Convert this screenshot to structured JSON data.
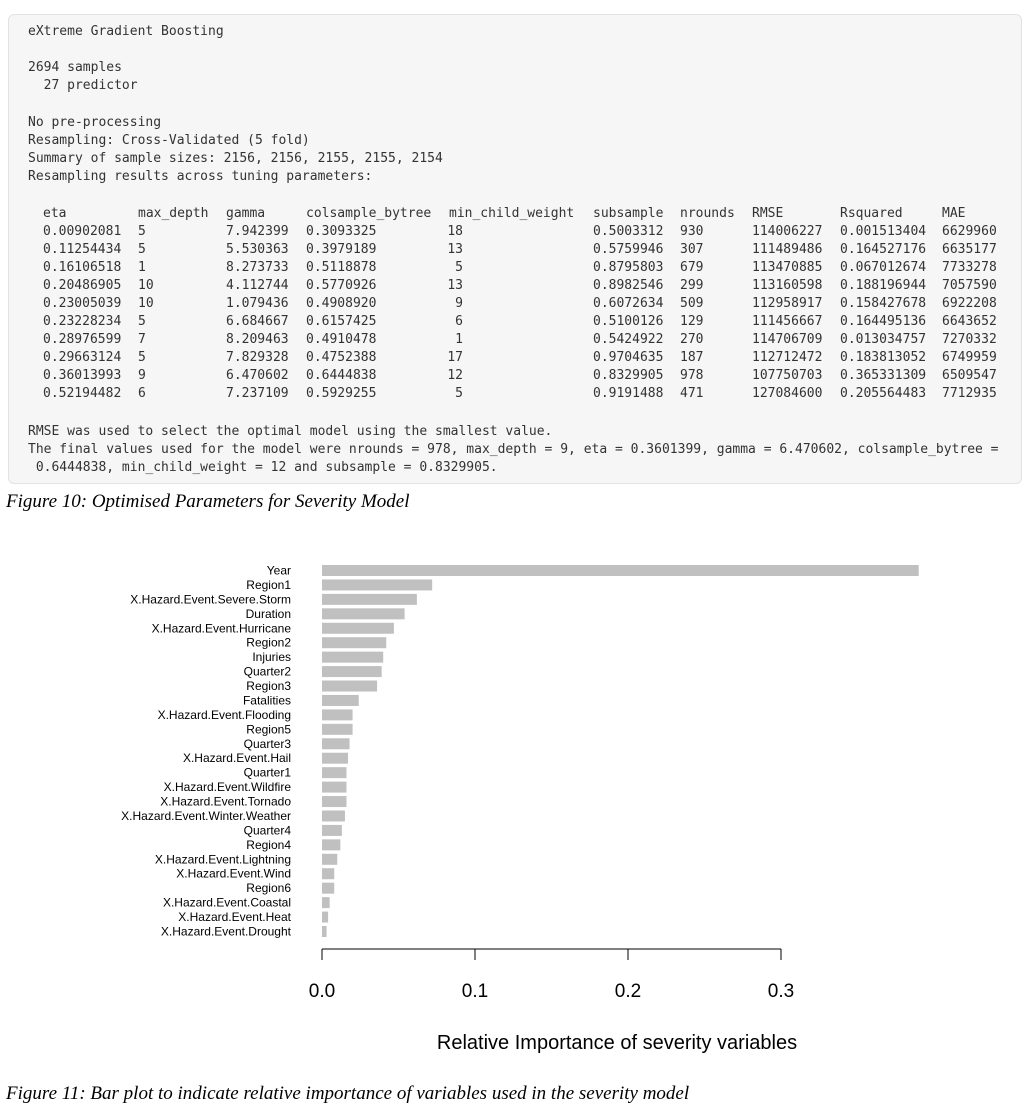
{
  "console": {
    "model_name": "eXtreme Gradient Boosting",
    "samples": "2694 samples",
    "predictors": "  27 predictor",
    "preprocessing": "No pre-processing",
    "resampling": "Resampling: Cross-Validated (5 fold)",
    "sample_sizes": "Summary of sample sizes: 2156, 2156, 2155, 2155, 2154",
    "results_header": "Resampling results across tuning parameters:",
    "columns": [
      "eta",
      "max_depth",
      "gamma",
      "colsample_bytree",
      "min_child_weight",
      "subsample",
      "nrounds",
      "RMSE",
      "Rsquared",
      "MAE"
    ],
    "rows": [
      [
        "0.00902081",
        "5",
        "7.942399",
        "0.3093325",
        "18",
        "0.5003312",
        "930",
        "114006227",
        "0.001513404",
        "6629960"
      ],
      [
        "0.11254434",
        "5",
        "5.530363",
        "0.3979189",
        "13",
        "0.5759946",
        "307",
        "111489486",
        "0.164527176",
        "6635177"
      ],
      [
        "0.16106518",
        "1",
        "8.273733",
        "0.5118878",
        "5",
        "0.8795803",
        "679",
        "113470885",
        "0.067012674",
        "7733278"
      ],
      [
        "0.20486905",
        "10",
        "4.112744",
        "0.5770926",
        "13",
        "0.8982546",
        "299",
        "113160598",
        "0.188196944",
        "7057590"
      ],
      [
        "0.23005039",
        "10",
        "1.079436",
        "0.4908920",
        "9",
        "0.6072634",
        "509",
        "112958917",
        "0.158427678",
        "6922208"
      ],
      [
        "0.23228234",
        "5",
        "6.684667",
        "0.6157425",
        "6",
        "0.5100126",
        "129",
        "111456667",
        "0.164495136",
        "6643652"
      ],
      [
        "0.28976599",
        "7",
        "8.209463",
        "0.4910478",
        "1",
        "0.5424922",
        "270",
        "114706709",
        "0.013034757",
        "7270332"
      ],
      [
        "0.29663124",
        "5",
        "7.829328",
        "0.4752388",
        "17",
        "0.9704635",
        "187",
        "112712472",
        "0.183813052",
        "6749959"
      ],
      [
        "0.36013993",
        "9",
        "6.470602",
        "0.6444838",
        "12",
        "0.8329905",
        "978",
        "107750703",
        "0.365331309",
        "6509547"
      ],
      [
        "0.52194482",
        "6",
        "7.237109",
        "0.5929255",
        "5",
        "0.9191488",
        "471",
        "127084600",
        "0.205564483",
        "7712935"
      ]
    ],
    "rmse_note": "RMSE was used to select the optimal model using the smallest value.",
    "final_values_line1": "The final values used for the model were nrounds = 978, max_depth = 9, eta = 0.3601399, gamma = 6.470602, colsample_bytree =",
    "final_values_line2": " 0.6444838, min_child_weight = 12 and subsample = 0.8329905."
  },
  "caption_fig10": "Figure 10: Optimised Parameters for Severity Model",
  "caption_fig11": "Figure 11: Bar plot to indicate relative importance of variables used in the severity model",
  "chart_data": {
    "type": "bar",
    "orientation": "horizontal",
    "categories": [
      "Year",
      "Region1",
      "X.Hazard.Event.Severe.Storm",
      "Duration",
      "X.Hazard.Event.Hurricane",
      "Region2",
      "Injuries",
      "Quarter2",
      "Region3",
      "Fatalities",
      "X.Hazard.Event.Flooding",
      "Region5",
      "Quarter3",
      "X.Hazard.Event.Hail",
      "Quarter1",
      "X.Hazard.Event.Wildfire",
      "X.Hazard.Event.Tornado",
      "X.Hazard.Event.Winter.Weather",
      "Quarter4",
      "Region4",
      "X.Hazard.Event.Lightning",
      "X.Hazard.Event.Wind",
      "Region6",
      "X.Hazard.Event.Coastal",
      "X.Hazard.Event.Heat",
      "X.Hazard.Event.Drought"
    ],
    "values": [
      0.39,
      0.072,
      0.062,
      0.054,
      0.047,
      0.042,
      0.04,
      0.039,
      0.036,
      0.024,
      0.02,
      0.02,
      0.018,
      0.017,
      0.016,
      0.016,
      0.016,
      0.015,
      0.013,
      0.012,
      0.01,
      0.008,
      0.008,
      0.005,
      0.004,
      0.003
    ],
    "xlabel": "Relative Importance of severity variables",
    "xticks": [
      "0.0",
      "0.1",
      "0.2",
      "0.3"
    ],
    "xtick_values": [
      0,
      0.1,
      0.2,
      0.3
    ],
    "xlim": [
      0,
      0.39
    ],
    "bar_color": "#c0c0c0",
    "grid": false
  }
}
